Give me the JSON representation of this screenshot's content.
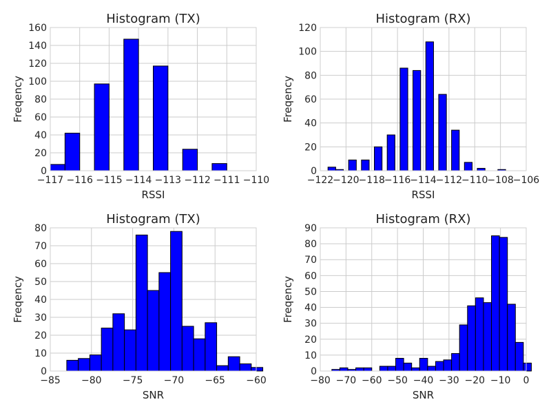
{
  "chart_data": [
    {
      "type": "bar",
      "title": "Histogram (TX)",
      "xlabel": "RSSI",
      "ylabel": "Freqency",
      "xlim": [
        -117,
        -110
      ],
      "ylim": [
        0,
        160
      ],
      "xticks": [
        -117,
        -116,
        -115,
        -114,
        -113,
        -112,
        -111,
        -110
      ],
      "yticks": [
        0,
        20,
        40,
        60,
        80,
        100,
        120,
        140,
        160
      ],
      "grid": true,
      "bins": [
        {
          "x0": -117.0,
          "x1": -116.5,
          "count": 7
        },
        {
          "x0": -116.5,
          "x1": -116.0,
          "count": 42
        },
        {
          "x0": -115.5,
          "x1": -115.0,
          "count": 97
        },
        {
          "x0": -114.5,
          "x1": -114.0,
          "count": 147
        },
        {
          "x0": -113.5,
          "x1": -113.0,
          "count": 117
        },
        {
          "x0": -112.5,
          "x1": -112.0,
          "count": 24
        },
        {
          "x0": -111.5,
          "x1": -111.0,
          "count": 8
        }
      ]
    },
    {
      "type": "bar",
      "title": "Histogram (RX)",
      "xlabel": "RSSI",
      "ylabel": "Freqency",
      "xlim": [
        -122,
        -106
      ],
      "ylim": [
        0,
        120
      ],
      "xticks": [
        -122,
        -120,
        -118,
        -116,
        -114,
        -112,
        -110,
        -108,
        -106
      ],
      "yticks": [
        0,
        20,
        40,
        60,
        80,
        100,
        120
      ],
      "grid": true,
      "bins": [
        {
          "x0": -121.4,
          "x1": -120.8,
          "count": 3
        },
        {
          "x0": -120.8,
          "x1": -120.2,
          "count": 1
        },
        {
          "x0": -119.8,
          "x1": -119.2,
          "count": 9
        },
        {
          "x0": -118.8,
          "x1": -118.2,
          "count": 9
        },
        {
          "x0": -117.8,
          "x1": -117.2,
          "count": 20
        },
        {
          "x0": -116.8,
          "x1": -116.2,
          "count": 30
        },
        {
          "x0": -115.8,
          "x1": -115.2,
          "count": 86
        },
        {
          "x0": -114.8,
          "x1": -114.2,
          "count": 84
        },
        {
          "x0": -113.8,
          "x1": -113.2,
          "count": 108
        },
        {
          "x0": -112.8,
          "x1": -112.2,
          "count": 64
        },
        {
          "x0": -111.8,
          "x1": -111.2,
          "count": 34
        },
        {
          "x0": -110.8,
          "x1": -110.2,
          "count": 7
        },
        {
          "x0": -109.8,
          "x1": -109.2,
          "count": 2
        },
        {
          "x0": -108.2,
          "x1": -107.6,
          "count": 1
        }
      ]
    },
    {
      "type": "bar",
      "title": "Histogram (TX)",
      "xlabel": "SNR",
      "ylabel": "Freqency",
      "xlim": [
        -85,
        -60
      ],
      "ylim": [
        0,
        80
      ],
      "xticks": [
        -85,
        -80,
        -75,
        -70,
        -65,
        -60
      ],
      "yticks": [
        0,
        10,
        20,
        30,
        40,
        50,
        60,
        70,
        80
      ],
      "grid": true,
      "bins": [
        {
          "x0": -83.0,
          "x1": -81.6,
          "count": 6
        },
        {
          "x0": -81.6,
          "x1": -80.2,
          "count": 7
        },
        {
          "x0": -80.2,
          "x1": -78.8,
          "count": 9
        },
        {
          "x0": -78.8,
          "x1": -77.4,
          "count": 24
        },
        {
          "x0": -77.4,
          "x1": -76.0,
          "count": 32
        },
        {
          "x0": -76.0,
          "x1": -74.6,
          "count": 23
        },
        {
          "x0": -74.6,
          "x1": -73.2,
          "count": 76
        },
        {
          "x0": -73.2,
          "x1": -71.8,
          "count": 45
        },
        {
          "x0": -71.8,
          "x1": -70.4,
          "count": 55
        },
        {
          "x0": -70.4,
          "x1": -69.0,
          "count": 78
        },
        {
          "x0": -69.0,
          "x1": -67.6,
          "count": 25
        },
        {
          "x0": -67.6,
          "x1": -66.2,
          "count": 18
        },
        {
          "x0": -66.2,
          "x1": -64.8,
          "count": 27
        },
        {
          "x0": -64.8,
          "x1": -63.4,
          "count": 3
        },
        {
          "x0": -63.4,
          "x1": -62.0,
          "count": 8
        },
        {
          "x0": -62.0,
          "x1": -60.6,
          "count": 4
        },
        {
          "x0": -60.6,
          "x1": -59.2,
          "count": 2
        }
      ]
    },
    {
      "type": "bar",
      "title": "Histogram (RX)",
      "xlabel": "SNR",
      "ylabel": "Freqency",
      "xlim": [
        -80,
        0
      ],
      "ylim": [
        0,
        90
      ],
      "xticks": [
        -80,
        -70,
        -60,
        -50,
        -40,
        -30,
        -20,
        -10,
        0
      ],
      "yticks": [
        0,
        10,
        20,
        30,
        40,
        50,
        60,
        70,
        80,
        90
      ],
      "grid": true,
      "bins": [
        {
          "x0": -75.5,
          "x1": -72.4,
          "count": 1
        },
        {
          "x0": -72.4,
          "x1": -69.3,
          "count": 2
        },
        {
          "x0": -69.3,
          "x1": -66.2,
          "count": 1
        },
        {
          "x0": -66.2,
          "x1": -63.1,
          "count": 2
        },
        {
          "x0": -63.1,
          "x1": -60.0,
          "count": 2
        },
        {
          "x0": -56.9,
          "x1": -53.8,
          "count": 3
        },
        {
          "x0": -53.8,
          "x1": -50.7,
          "count": 3
        },
        {
          "x0": -50.7,
          "x1": -47.6,
          "count": 8
        },
        {
          "x0": -47.6,
          "x1": -44.5,
          "count": 5
        },
        {
          "x0": -44.5,
          "x1": -41.4,
          "count": 2
        },
        {
          "x0": -41.4,
          "x1": -38.3,
          "count": 8
        },
        {
          "x0": -38.3,
          "x1": -35.2,
          "count": 3
        },
        {
          "x0": -35.2,
          "x1": -32.1,
          "count": 6
        },
        {
          "x0": -32.1,
          "x1": -29.0,
          "count": 7
        },
        {
          "x0": -29.0,
          "x1": -25.9,
          "count": 11
        },
        {
          "x0": -25.9,
          "x1": -22.8,
          "count": 29
        },
        {
          "x0": -22.8,
          "x1": -19.7,
          "count": 41
        },
        {
          "x0": -19.7,
          "x1": -16.6,
          "count": 46
        },
        {
          "x0": -16.6,
          "x1": -13.5,
          "count": 43
        },
        {
          "x0": -13.5,
          "x1": -10.4,
          "count": 85
        },
        {
          "x0": -10.4,
          "x1": -7.3,
          "count": 84
        },
        {
          "x0": -7.3,
          "x1": -4.2,
          "count": 42
        },
        {
          "x0": -4.2,
          "x1": -1.1,
          "count": 18
        },
        {
          "x0": -1.1,
          "x1": 2.0,
          "count": 5
        }
      ]
    }
  ],
  "colors": {
    "bar_fill": "#0000ff",
    "bar_edge": "#000000",
    "grid": "#cbcbcb",
    "axes_edge": "#cfcfcf",
    "text": "#222222"
  }
}
